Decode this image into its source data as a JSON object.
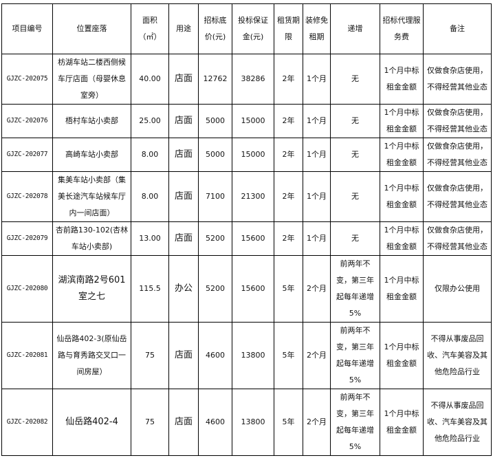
{
  "headers": [
    "项目编号",
    "位置座落",
    "面积（㎡）",
    "用途",
    "招标底价(元)",
    "投标保证金(元)",
    "租赁期限",
    "装修免租期",
    "递增",
    "招标代理服务费",
    "备注"
  ],
  "rows": [
    [
      "GJZC-202075",
      "枋湖车站二楼西侧候车厅店面（母婴休息室旁）",
      "40.00",
      "店面",
      "12762",
      "38286",
      "2年",
      "1个月",
      "无",
      "1个月中标租金金额",
      "仅做食杂店使用，不得经营其他业态"
    ],
    [
      "GJZC-202076",
      "梧村车站小卖部",
      "25.00",
      "店面",
      "5000",
      "15000",
      "2年",
      "1个月",
      "无",
      "1个月中标租金金额",
      "仅做食杂店使用，不得经营其他业态"
    ],
    [
      "GJZC-202077",
      "高崎车站小卖部",
      "8.00",
      "店面",
      "5000",
      "15000",
      "2年",
      "1个月",
      "无",
      "1个月中标租金金额",
      "仅做食杂店使用，不得经营其他业态"
    ],
    [
      "GJZC-202078",
      "集美车站小卖部（集美长途汽车站候车厅内一间店面）",
      "8.00",
      "店面",
      "7100",
      "21300",
      "2年",
      "1个月",
      "无",
      "1个月中标租金金额",
      "仅做食杂店使用，不得经营其他业态"
    ],
    [
      "GJZC-202079",
      "杏前路130-102(杏林车站小卖部)",
      "13.00",
      "店面",
      "5200",
      "15600",
      "2年",
      "1个月",
      "无",
      "1个月中标租金金额",
      "仅做食杂店使用，不得经营其他业态"
    ],
    [
      "GJZC-202080",
      "湖滨南路2号601室之七",
      "115.5",
      "办公",
      "5200",
      "15600",
      "5年",
      "2个月",
      "前两年不变，第三年起每年递增5%",
      "1个月中标租金金额",
      "仅限办公使用"
    ],
    [
      "GJZC-202081",
      "仙岳路402-3(原仙岳路与育秀路交叉口一间房屋）",
      "75",
      "店面",
      "4600",
      "13800",
      "5年",
      "2个月",
      "前两年不变，第三年起每年递增5%",
      "1个月中标租金金额",
      "不得从事废品回收、汽车美容及其他危险品行业"
    ],
    [
      "GJZC-202082",
      "仙岳路402-4",
      "75",
      "店面",
      "4600",
      "13800",
      "5年",
      "2个月",
      "前两年不变，第三年起每年递增5%",
      "1个月中标租金金额",
      "不得从事废品回收、汽车美容及其他危险品行业"
    ]
  ]
}
